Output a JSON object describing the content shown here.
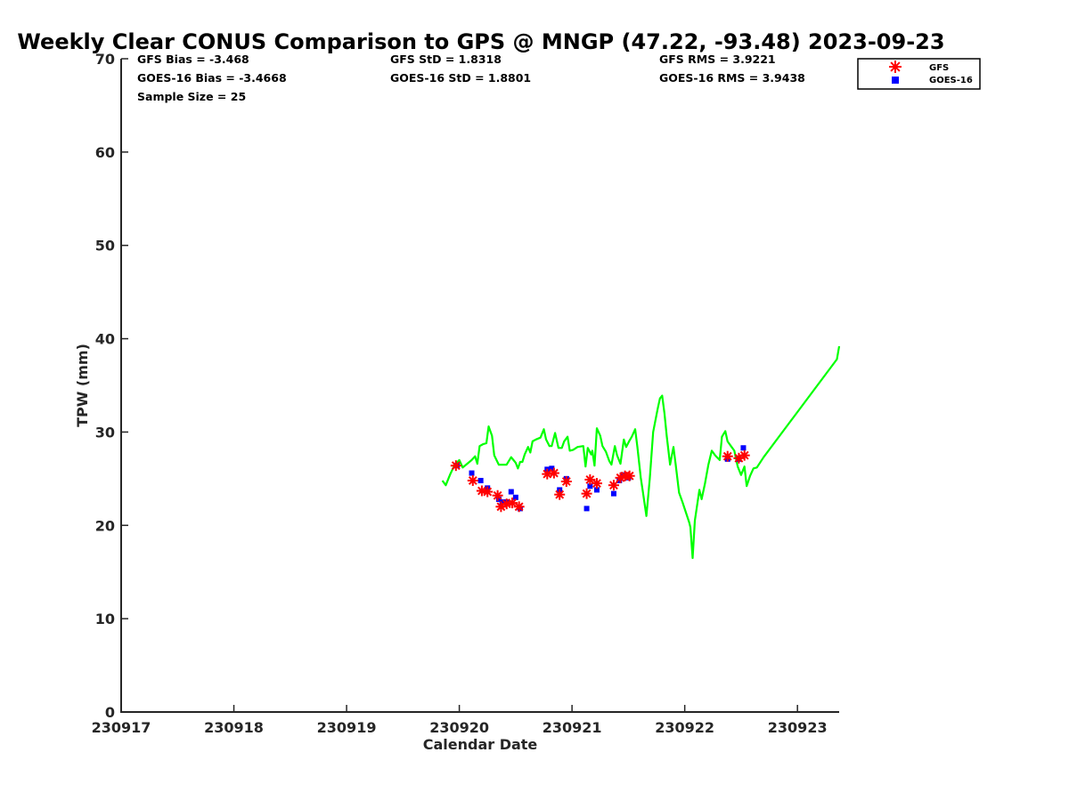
{
  "chart_data": {
    "type": "scatter",
    "title": "Weekly Clear CONUS Comparison to GPS @ MNGP (47.22, -93.48) 2023-09-23",
    "xlabel": "Calendar Date",
    "ylabel": "TPW (mm)",
    "xlim": [
      0,
      6.37
    ],
    "ylim": [
      0,
      70
    ],
    "x_ticks": [
      0,
      1,
      2,
      3,
      4,
      5,
      6
    ],
    "x_tick_labels": [
      "230917",
      "230918",
      "230919",
      "230920",
      "230921",
      "230922",
      "230923"
    ],
    "y_ticks": [
      0,
      10,
      20,
      30,
      40,
      50,
      60,
      70
    ],
    "y_tick_labels": [
      "0",
      "10",
      "20",
      "30",
      "40",
      "50",
      "60",
      "70"
    ],
    "grid": false,
    "legend_position": "top-right",
    "stats": {
      "gfs_bias": "GFS Bias = -3.468",
      "goes_bias": "GOES-16 Bias = -3.4668",
      "sample_size": "Sample Size = 25",
      "gfs_std": "GFS StD = 1.8318",
      "goes_std": "GOES-16 StD = 1.8801",
      "gfs_rms": "GFS RMS = 3.9221",
      "goes_rms": "GOES-16 RMS = 3.9438"
    },
    "series": [
      {
        "name": "GPS",
        "kind": "line",
        "color": "#00ff00",
        "points": [
          [
            2.85,
            24.8
          ],
          [
            2.88,
            24.3
          ],
          [
            2.92,
            25.5
          ],
          [
            2.96,
            26.5
          ],
          [
            3.0,
            27.0
          ],
          [
            3.03,
            26.2
          ],
          [
            3.07,
            26.6
          ],
          [
            3.11,
            27.0
          ],
          [
            3.14,
            27.4
          ],
          [
            3.16,
            26.6
          ],
          [
            3.18,
            28.5
          ],
          [
            3.21,
            28.7
          ],
          [
            3.24,
            28.8
          ],
          [
            3.26,
            30.6
          ],
          [
            3.29,
            29.6
          ],
          [
            3.31,
            27.5
          ],
          [
            3.35,
            26.5
          ],
          [
            3.39,
            26.5
          ],
          [
            3.42,
            26.5
          ],
          [
            3.46,
            27.3
          ],
          [
            3.5,
            26.7
          ],
          [
            3.52,
            26.1
          ],
          [
            3.54,
            26.8
          ],
          [
            3.56,
            26.8
          ],
          [
            3.58,
            27.6
          ],
          [
            3.61,
            28.4
          ],
          [
            3.63,
            27.8
          ],
          [
            3.65,
            29.0
          ],
          [
            3.68,
            29.2
          ],
          [
            3.72,
            29.4
          ],
          [
            3.75,
            30.3
          ],
          [
            3.77,
            29.2
          ],
          [
            3.8,
            28.5
          ],
          [
            3.82,
            28.5
          ],
          [
            3.85,
            29.9
          ],
          [
            3.88,
            28.3
          ],
          [
            3.91,
            28.3
          ],
          [
            3.93,
            29.0
          ],
          [
            3.96,
            29.5
          ],
          [
            3.98,
            28.0
          ],
          [
            4.01,
            28.1
          ],
          [
            4.05,
            28.4
          ],
          [
            4.1,
            28.5
          ],
          [
            4.12,
            26.3
          ],
          [
            4.14,
            28.3
          ],
          [
            4.17,
            27.6
          ],
          [
            4.18,
            28.0
          ],
          [
            4.2,
            26.4
          ],
          [
            4.22,
            30.4
          ],
          [
            4.25,
            29.6
          ],
          [
            4.27,
            28.5
          ],
          [
            4.3,
            27.9
          ],
          [
            4.33,
            26.9
          ],
          [
            4.35,
            26.5
          ],
          [
            4.38,
            28.5
          ],
          [
            4.4,
            27.5
          ],
          [
            4.43,
            26.6
          ],
          [
            4.46,
            29.2
          ],
          [
            4.48,
            28.4
          ],
          [
            4.51,
            29.1
          ],
          [
            4.53,
            29.5
          ],
          [
            4.56,
            30.3
          ],
          [
            4.58,
            28.4
          ],
          [
            4.61,
            25.1
          ],
          [
            4.63,
            23.5
          ],
          [
            4.66,
            21.0
          ],
          [
            4.69,
            25.0
          ],
          [
            4.72,
            30.0
          ],
          [
            4.76,
            32.5
          ],
          [
            4.78,
            33.6
          ],
          [
            4.8,
            33.9
          ],
          [
            4.82,
            32.0
          ],
          [
            4.84,
            29.6
          ],
          [
            4.87,
            26.5
          ],
          [
            4.9,
            28.4
          ],
          [
            4.92,
            26.5
          ],
          [
            4.95,
            23.5
          ],
          [
            4.98,
            22.5
          ],
          [
            5.01,
            21.4
          ],
          [
            5.04,
            20.3
          ],
          [
            5.05,
            19.8
          ],
          [
            5.07,
            16.5
          ],
          [
            5.09,
            20.5
          ],
          [
            5.13,
            23.8
          ],
          [
            5.15,
            22.8
          ],
          [
            5.18,
            24.5
          ],
          [
            5.21,
            26.5
          ],
          [
            5.24,
            28.0
          ],
          [
            5.27,
            27.5
          ],
          [
            5.31,
            27.0
          ],
          [
            5.33,
            29.5
          ],
          [
            5.36,
            30.1
          ],
          [
            5.38,
            29.0
          ],
          [
            5.41,
            28.5
          ],
          [
            5.44,
            28.0
          ],
          [
            5.47,
            26.3
          ],
          [
            5.5,
            25.4
          ],
          [
            5.53,
            26.3
          ],
          [
            5.55,
            24.2
          ],
          [
            5.58,
            25.3
          ],
          [
            5.61,
            26.1
          ],
          [
            5.64,
            26.2
          ],
          [
            5.7,
            27.3
          ],
          [
            6.35,
            37.8
          ],
          [
            6.37,
            39.2
          ]
        ]
      },
      {
        "name": "GFS",
        "kind": "markers",
        "marker": "asterisk",
        "color": "#ff0000",
        "points": [
          [
            2.97,
            26.4
          ],
          [
            3.12,
            24.8
          ],
          [
            3.2,
            23.7
          ],
          [
            3.25,
            23.6
          ],
          [
            3.34,
            23.2
          ],
          [
            3.37,
            22.0
          ],
          [
            3.42,
            22.3
          ],
          [
            3.47,
            22.4
          ],
          [
            3.53,
            22.0
          ],
          [
            3.78,
            25.5
          ],
          [
            3.84,
            25.6
          ],
          [
            3.89,
            23.3
          ],
          [
            3.95,
            24.7
          ],
          [
            4.13,
            23.4
          ],
          [
            4.16,
            24.9
          ],
          [
            4.22,
            24.5
          ],
          [
            4.37,
            24.3
          ],
          [
            4.43,
            25.1
          ],
          [
            4.47,
            25.3
          ],
          [
            4.51,
            25.3
          ],
          [
            5.38,
            27.4
          ],
          [
            5.48,
            27.2
          ],
          [
            5.53,
            27.5
          ]
        ]
      },
      {
        "name": "GOES-16",
        "kind": "markers",
        "marker": "square",
        "color": "#0000ff",
        "points": [
          [
            2.98,
            26.4
          ],
          [
            3.11,
            25.6
          ],
          [
            3.19,
            24.8
          ],
          [
            3.25,
            24.0
          ],
          [
            3.35,
            22.8
          ],
          [
            3.38,
            22.5
          ],
          [
            3.42,
            22.5
          ],
          [
            3.46,
            23.6
          ],
          [
            3.5,
            23.0
          ],
          [
            3.54,
            21.8
          ],
          [
            3.78,
            26.0
          ],
          [
            3.82,
            26.1
          ],
          [
            3.89,
            23.8
          ],
          [
            3.95,
            25.0
          ],
          [
            4.13,
            21.8
          ],
          [
            4.16,
            24.2
          ],
          [
            4.22,
            23.8
          ],
          [
            4.37,
            23.4
          ],
          [
            4.42,
            24.8
          ],
          [
            4.45,
            25.4
          ],
          [
            4.5,
            25.1
          ],
          [
            5.38,
            27.1
          ],
          [
            5.48,
            27.1
          ],
          [
            5.52,
            28.3
          ]
        ]
      }
    ]
  }
}
